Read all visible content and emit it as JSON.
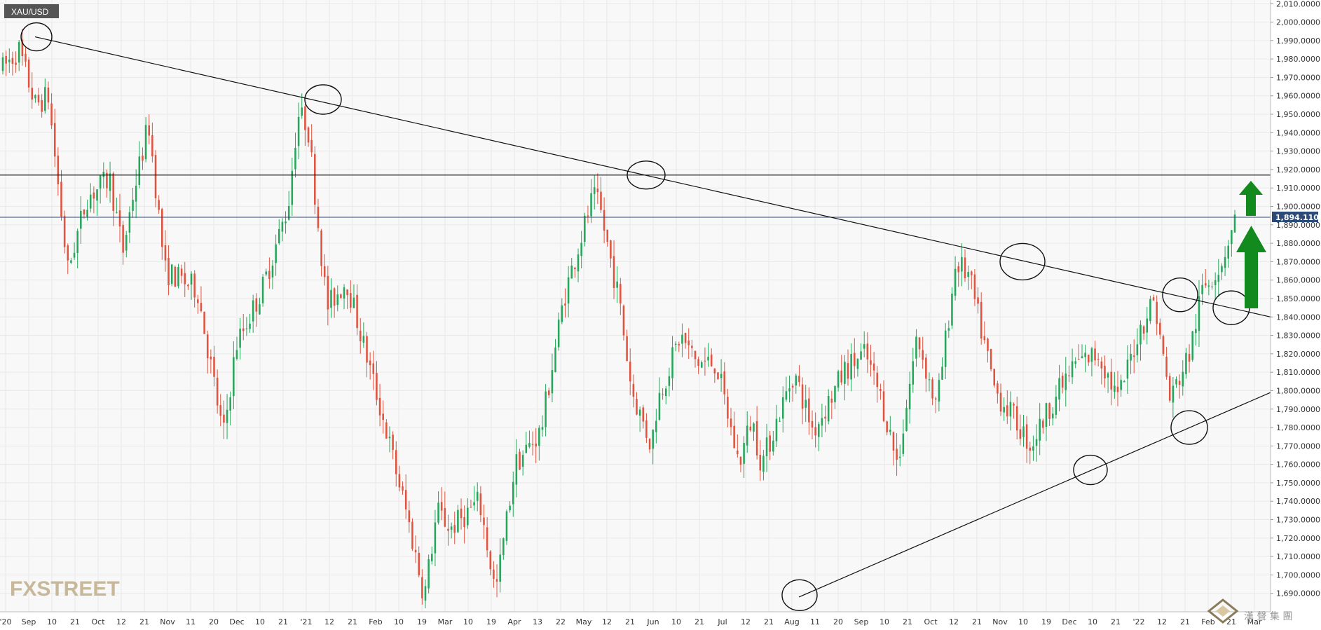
{
  "chart_data": {
    "type": "candlestick",
    "symbol": "XAU/USD",
    "current_price": "1,894.1100",
    "ylim": [
      1680,
      2012
    ],
    "y_ticks": [
      "1,690.0000",
      "1,700.0000",
      "1,710.0000",
      "1,720.0000",
      "1,730.0000",
      "1,740.0000",
      "1,750.0000",
      "1,760.0000",
      "1,770.0000",
      "1,780.0000",
      "1,790.0000",
      "1,800.0000",
      "1,810.0000",
      "1,820.0000",
      "1,830.0000",
      "1,840.0000",
      "1,850.0000",
      "1,860.0000",
      "1,870.0000",
      "1,880.0000",
      "1,890.0000",
      "1,900.0000",
      "1,910.0000",
      "1,920.0000",
      "1,930.0000",
      "1,940.0000",
      "1,950.0000",
      "1,960.0000",
      "1,970.0000",
      "1,980.0000",
      "1,990.0000",
      "2,000.0000",
      "2,010.0000"
    ],
    "x_ticks": [
      "'20",
      "Sep",
      "10",
      "21",
      "Oct",
      "12",
      "21",
      "Nov",
      "11",
      "20",
      "Dec",
      "10",
      "21",
      "'21",
      "12",
      "21",
      "Feb",
      "10",
      "19",
      "Mar",
      "10",
      "19",
      "Apr",
      "13",
      "22",
      "May",
      "12",
      "21",
      "Jun",
      "10",
      "21",
      "Jul",
      "12",
      "21",
      "Aug",
      "11",
      "20",
      "Sep",
      "10",
      "21",
      "Oct",
      "12",
      "21",
      "Nov",
      "10",
      "19",
      "Dec",
      "10",
      "21",
      "'22",
      "12",
      "21",
      "Feb",
      "21",
      "Mar"
    ],
    "horizontal_levels": [
      1917,
      1894.11
    ],
    "descending_trendline": {
      "start": [
        "Sep 2020",
        1992
      ],
      "end": [
        "Mar 2022",
        1840
      ]
    },
    "ascending_trendline": {
      "start": [
        "Aug 2021",
        1688
      ],
      "end": [
        "Mar 2022",
        1799
      ]
    },
    "marked_points": [
      {
        "label": "Sep 2020",
        "price": 1992
      },
      {
        "label": "Jan 2021",
        "price": 1958
      },
      {
        "label": "Jun 2021",
        "price": 1917
      },
      {
        "label": "Nov 2021",
        "price": 1870
      },
      {
        "label": "Jan 2022",
        "price": 1852
      },
      {
        "label": "Feb 2022",
        "price": 1845
      },
      {
        "label": "Aug 2021",
        "price": 1689
      },
      {
        "label": "Dec 2021",
        "price": 1757
      },
      {
        "label": "Jan 2022",
        "price": 1780
      }
    ],
    "annotations": [
      "upward arrow",
      "upward arrow"
    ],
    "colors": {
      "bull": "#26a65b",
      "bear": "#e0533f",
      "price_line": "#2b4a78",
      "arrow": "#138a1e"
    }
  },
  "branding": {
    "logo_text": "FXSTREET",
    "corner_watermark": "漢 聲 集 團"
  }
}
